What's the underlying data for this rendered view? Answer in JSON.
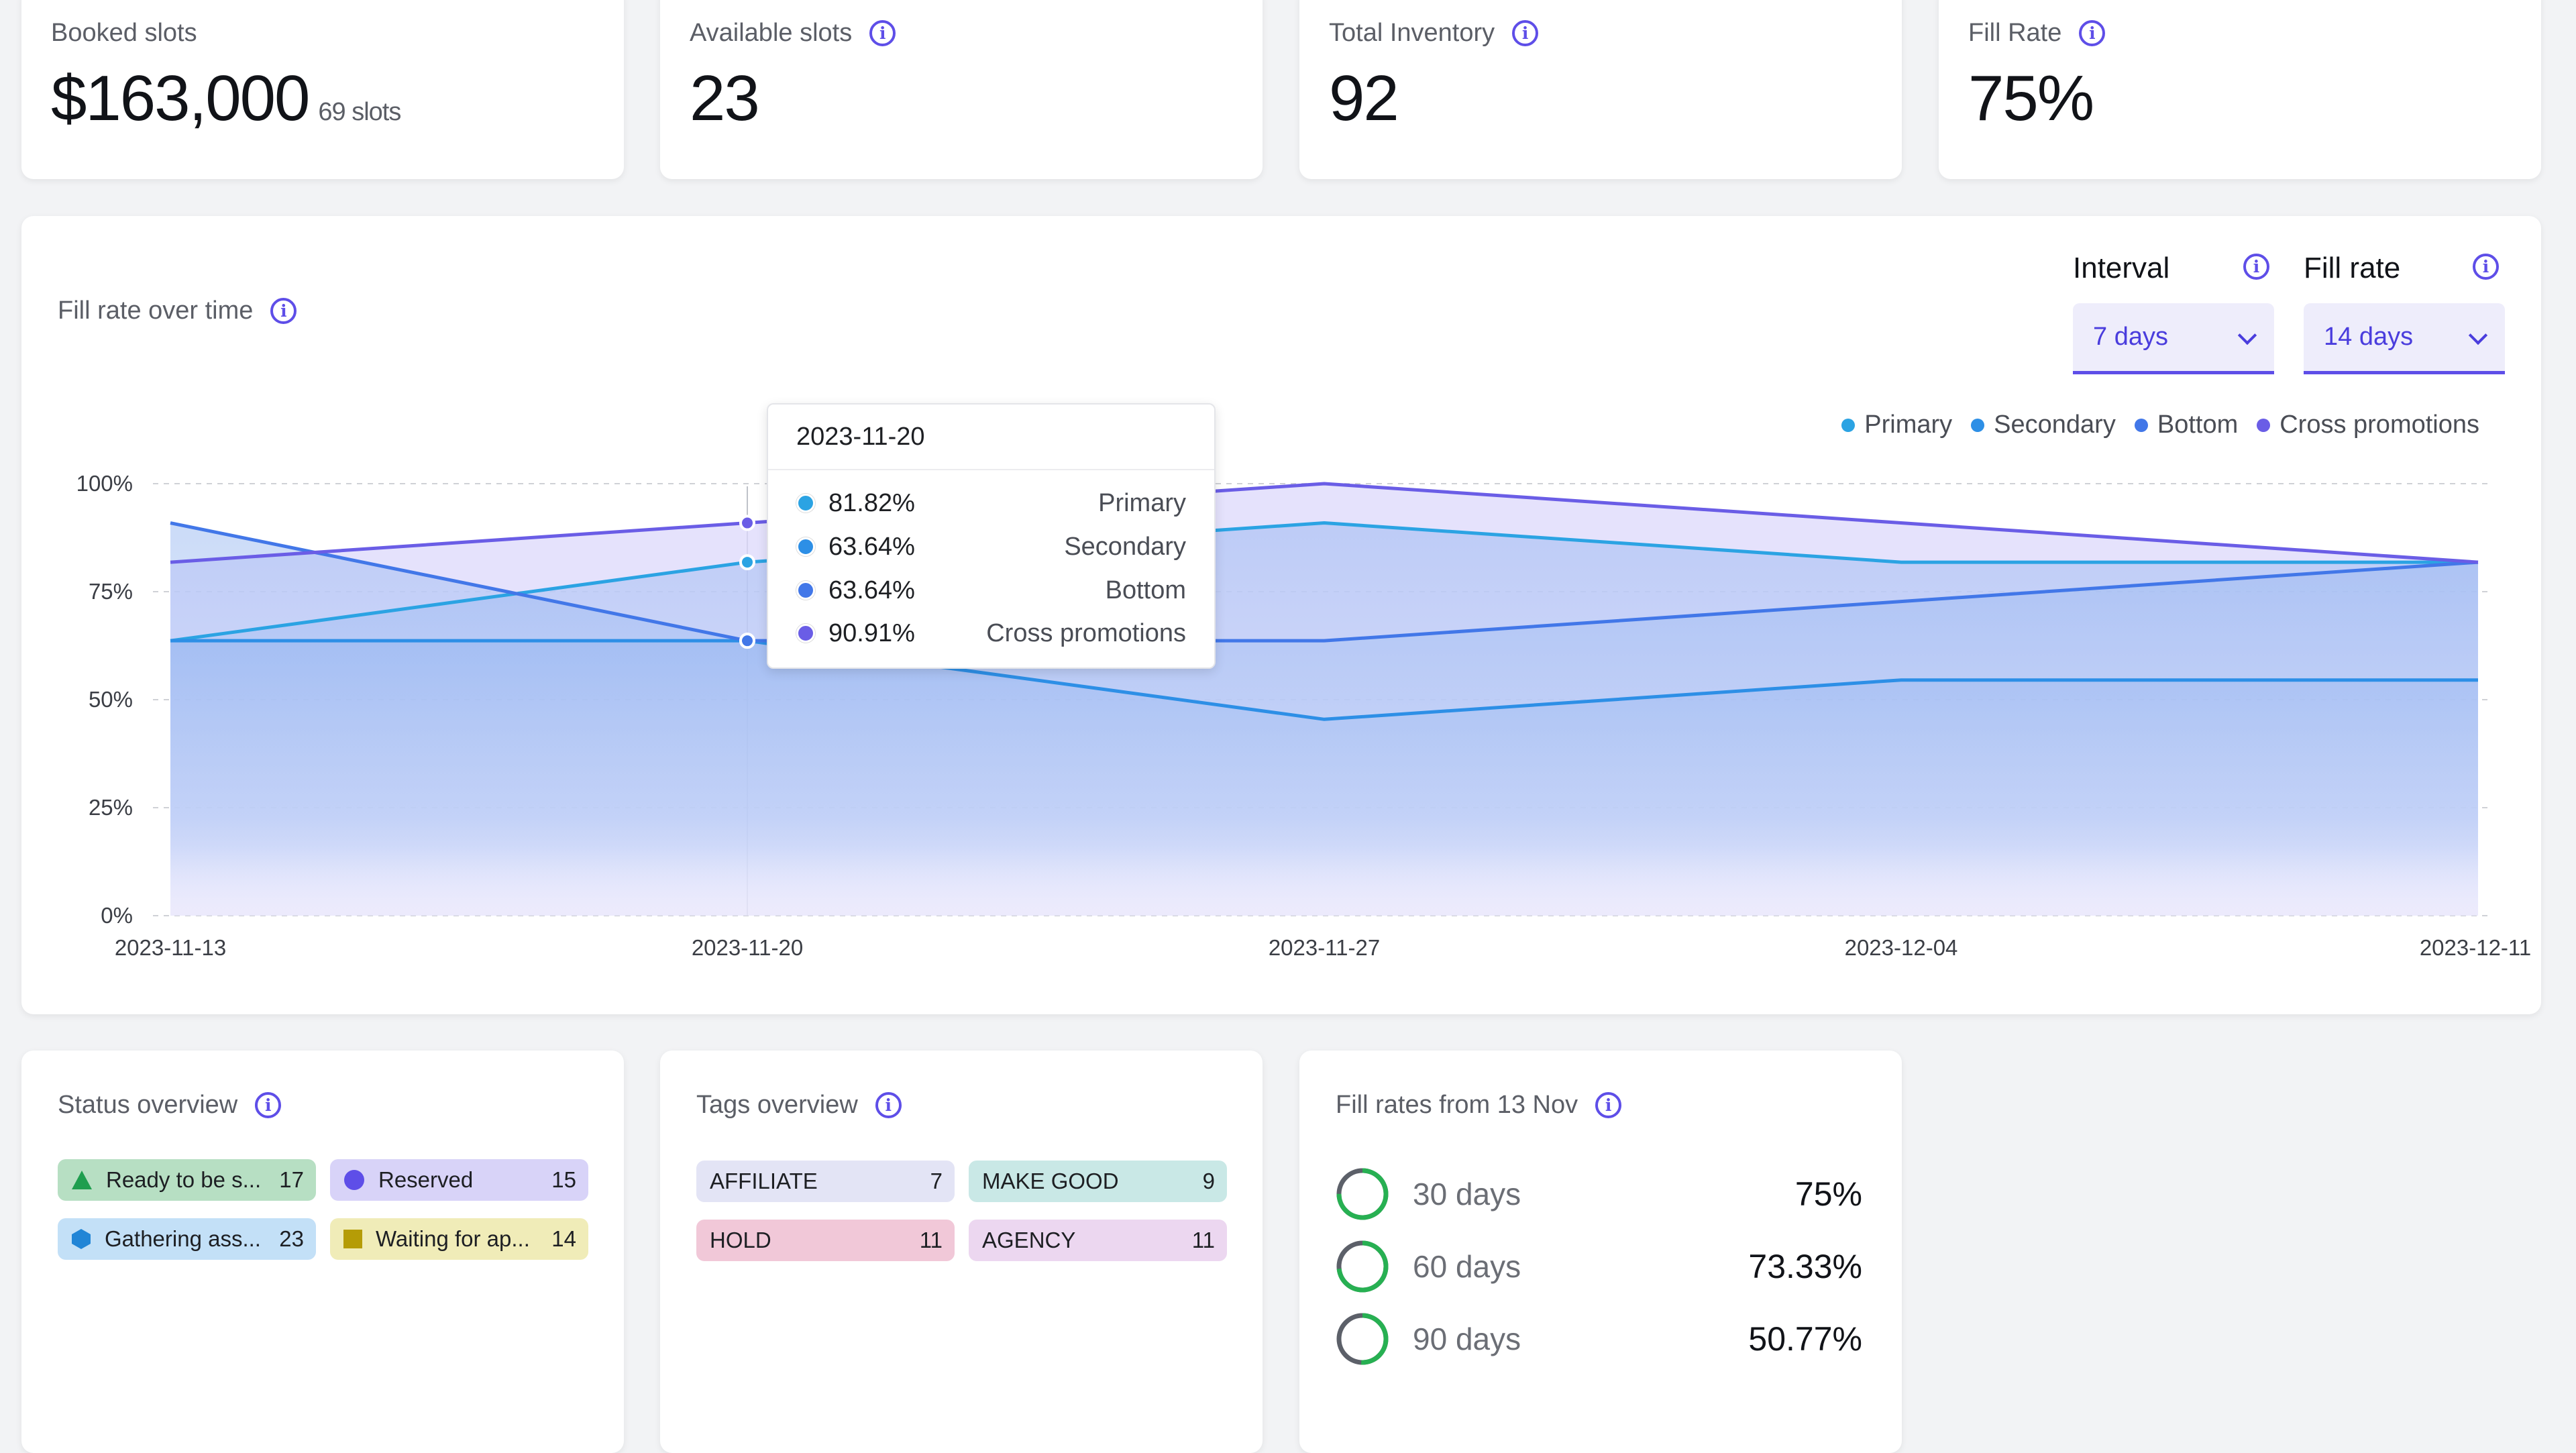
{
  "kpis": [
    {
      "label": "Booked slots",
      "value": "$163,000",
      "sub": "69 slots",
      "info": false
    },
    {
      "label": "Available slots",
      "value": "23",
      "info": true
    },
    {
      "label": "Total Inventory",
      "value": "92",
      "info": true
    },
    {
      "label": "Fill Rate",
      "value": "75%",
      "info": true
    }
  ],
  "chart_section": {
    "title": "Fill rate over time",
    "interval_label": "Interval",
    "interval_value": "7 days",
    "fillrate_label": "Fill rate",
    "fillrate_value": "14 days"
  },
  "chart_data": {
    "type": "area",
    "x": [
      "2023-11-13",
      "2023-11-20",
      "2023-11-27",
      "2023-12-04",
      "2023-12-11"
    ],
    "y_ticks": [
      "100%",
      "75%",
      "50%",
      "25%",
      "0%"
    ],
    "ylim": [
      0,
      100
    ],
    "grid": true,
    "legend_position": "top-right",
    "series": [
      {
        "name": "Primary",
        "color": "#2ba3e3",
        "values": [
          63.64,
          81.82,
          90.91,
          81.82,
          81.82
        ]
      },
      {
        "name": "Secondary",
        "color": "#2d8fe6",
        "values": [
          63.64,
          63.64,
          45.45,
          54.55,
          54.55
        ]
      },
      {
        "name": "Bottom",
        "color": "#4277e8",
        "values": [
          90.91,
          63.64,
          63.64,
          72.73,
          81.82
        ]
      },
      {
        "name": "Cross promotions",
        "color": "#6a5de6",
        "values": [
          81.82,
          90.91,
          100,
          90.91,
          81.82
        ]
      }
    ],
    "tooltip": {
      "date": "2023-11-20",
      "rows": [
        {
          "value": "81.82%",
          "name": "Primary",
          "color": "#2ba3e3"
        },
        {
          "value": "63.64%",
          "name": "Secondary",
          "color": "#2d8fe6"
        },
        {
          "value": "63.64%",
          "name": "Bottom",
          "color": "#4277e8"
        },
        {
          "value": "90.91%",
          "name": "Cross promotions",
          "color": "#6a5de6"
        }
      ]
    }
  },
  "status_overview": {
    "title": "Status overview",
    "items": [
      {
        "label": "Ready to be s...",
        "count": "17",
        "icon": "triangle-icon",
        "bg": "#b7dfc3",
        "color": "#1f9e4f"
      },
      {
        "label": "Reserved",
        "count": "15",
        "icon": "circle-icon",
        "bg": "#d8d3f8",
        "color": "#5e4ee8"
      },
      {
        "label": "Gathering ass...",
        "count": "23",
        "icon": "hexagon-icon",
        "bg": "#c3e0f7",
        "color": "#2185d6"
      },
      {
        "label": "Waiting for ap...",
        "count": "14",
        "icon": "square-icon",
        "bg": "#f0ecb8",
        "color": "#b59c06"
      }
    ]
  },
  "tags_overview": {
    "title": "Tags overview",
    "items": [
      {
        "label": "AFFILIATE",
        "count": "7",
        "bg": "#e3e4f5"
      },
      {
        "label": "MAKE GOOD",
        "count": "9",
        "bg": "#c9e8e6"
      },
      {
        "label": "HOLD",
        "count": "11",
        "bg": "#f1c8d8"
      },
      {
        "label": "AGENCY",
        "count": "11",
        "bg": "#ecd7f0"
      }
    ]
  },
  "fill_rates": {
    "title": "Fill rates from 13 Nov",
    "rows": [
      {
        "label": "30 days",
        "value": "75%",
        "fraction": 0.75
      },
      {
        "label": "60 days",
        "value": "73.33%",
        "fraction": 0.7333
      },
      {
        "label": "90 days",
        "value": "50.77%",
        "fraction": 0.5077
      }
    ]
  }
}
